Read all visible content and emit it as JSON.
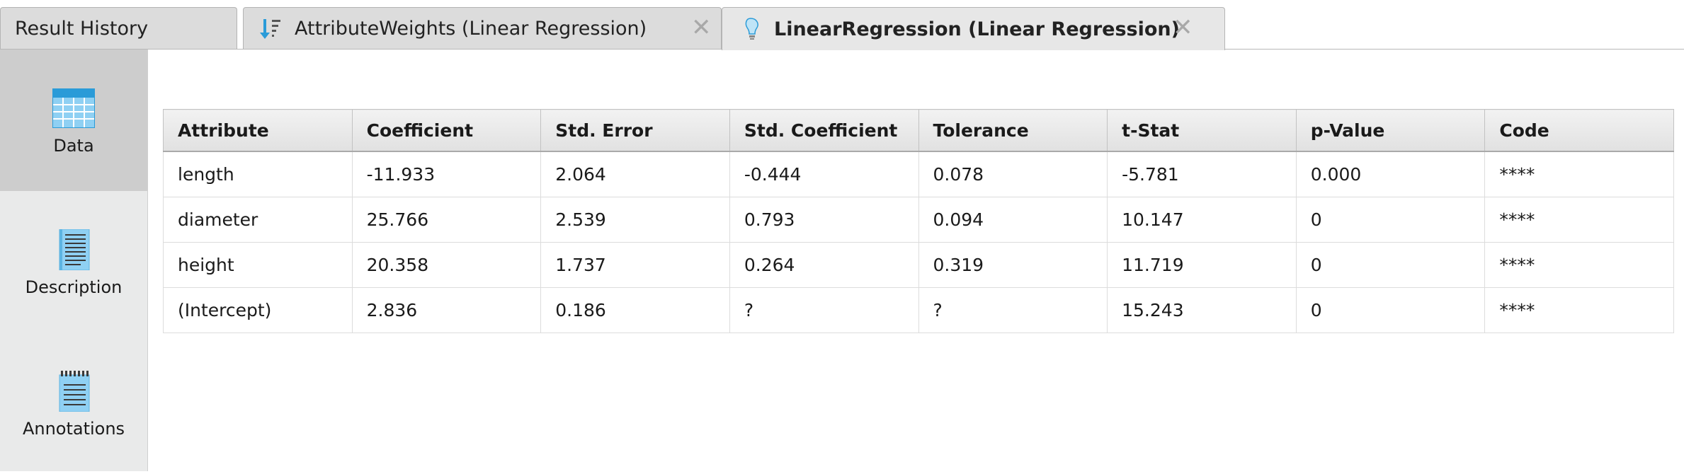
{
  "tabs": [
    {
      "label": "Result History",
      "closable": false,
      "active": false
    },
    {
      "label": "AttributeWeights (Linear Regression)",
      "icon": "sort-descending-icon",
      "closable": true,
      "active": false
    },
    {
      "label": "LinearRegression (Linear Regression)",
      "icon": "lightbulb-icon",
      "closable": true,
      "active": true
    }
  ],
  "close_glyph": "✕",
  "sidebar": {
    "items": [
      {
        "label": "Data",
        "icon": "table-icon",
        "selected": true
      },
      {
        "label": "Description",
        "icon": "document-icon",
        "selected": false
      },
      {
        "label": "Annotations",
        "icon": "notepad-icon",
        "selected": false
      }
    ]
  },
  "table": {
    "columns": [
      "Attribute",
      "Coefficient",
      "Std. Error",
      "Std. Coefficient",
      "Tolerance",
      "t-Stat",
      "p-Value",
      "Code"
    ],
    "rows": [
      [
        "length",
        "-11.933",
        "2.064",
        "-0.444",
        "0.078",
        "-5.781",
        "0.000",
        "****"
      ],
      [
        "diameter",
        "25.766",
        "2.539",
        "0.793",
        "0.094",
        "10.147",
        "0",
        "****"
      ],
      [
        "height",
        "20.358",
        "1.737",
        "0.264",
        "0.319",
        "11.719",
        "0",
        "****"
      ],
      [
        "(Intercept)",
        "2.836",
        "0.186",
        "?",
        "?",
        "15.243",
        "0",
        "****"
      ]
    ]
  },
  "colors": {
    "accent_blue": "#2a9bd8",
    "tab_bg": "#dcdcdc",
    "sidebar_bg": "#e9eaea",
    "sidebar_selected": "#cdcdcd"
  }
}
